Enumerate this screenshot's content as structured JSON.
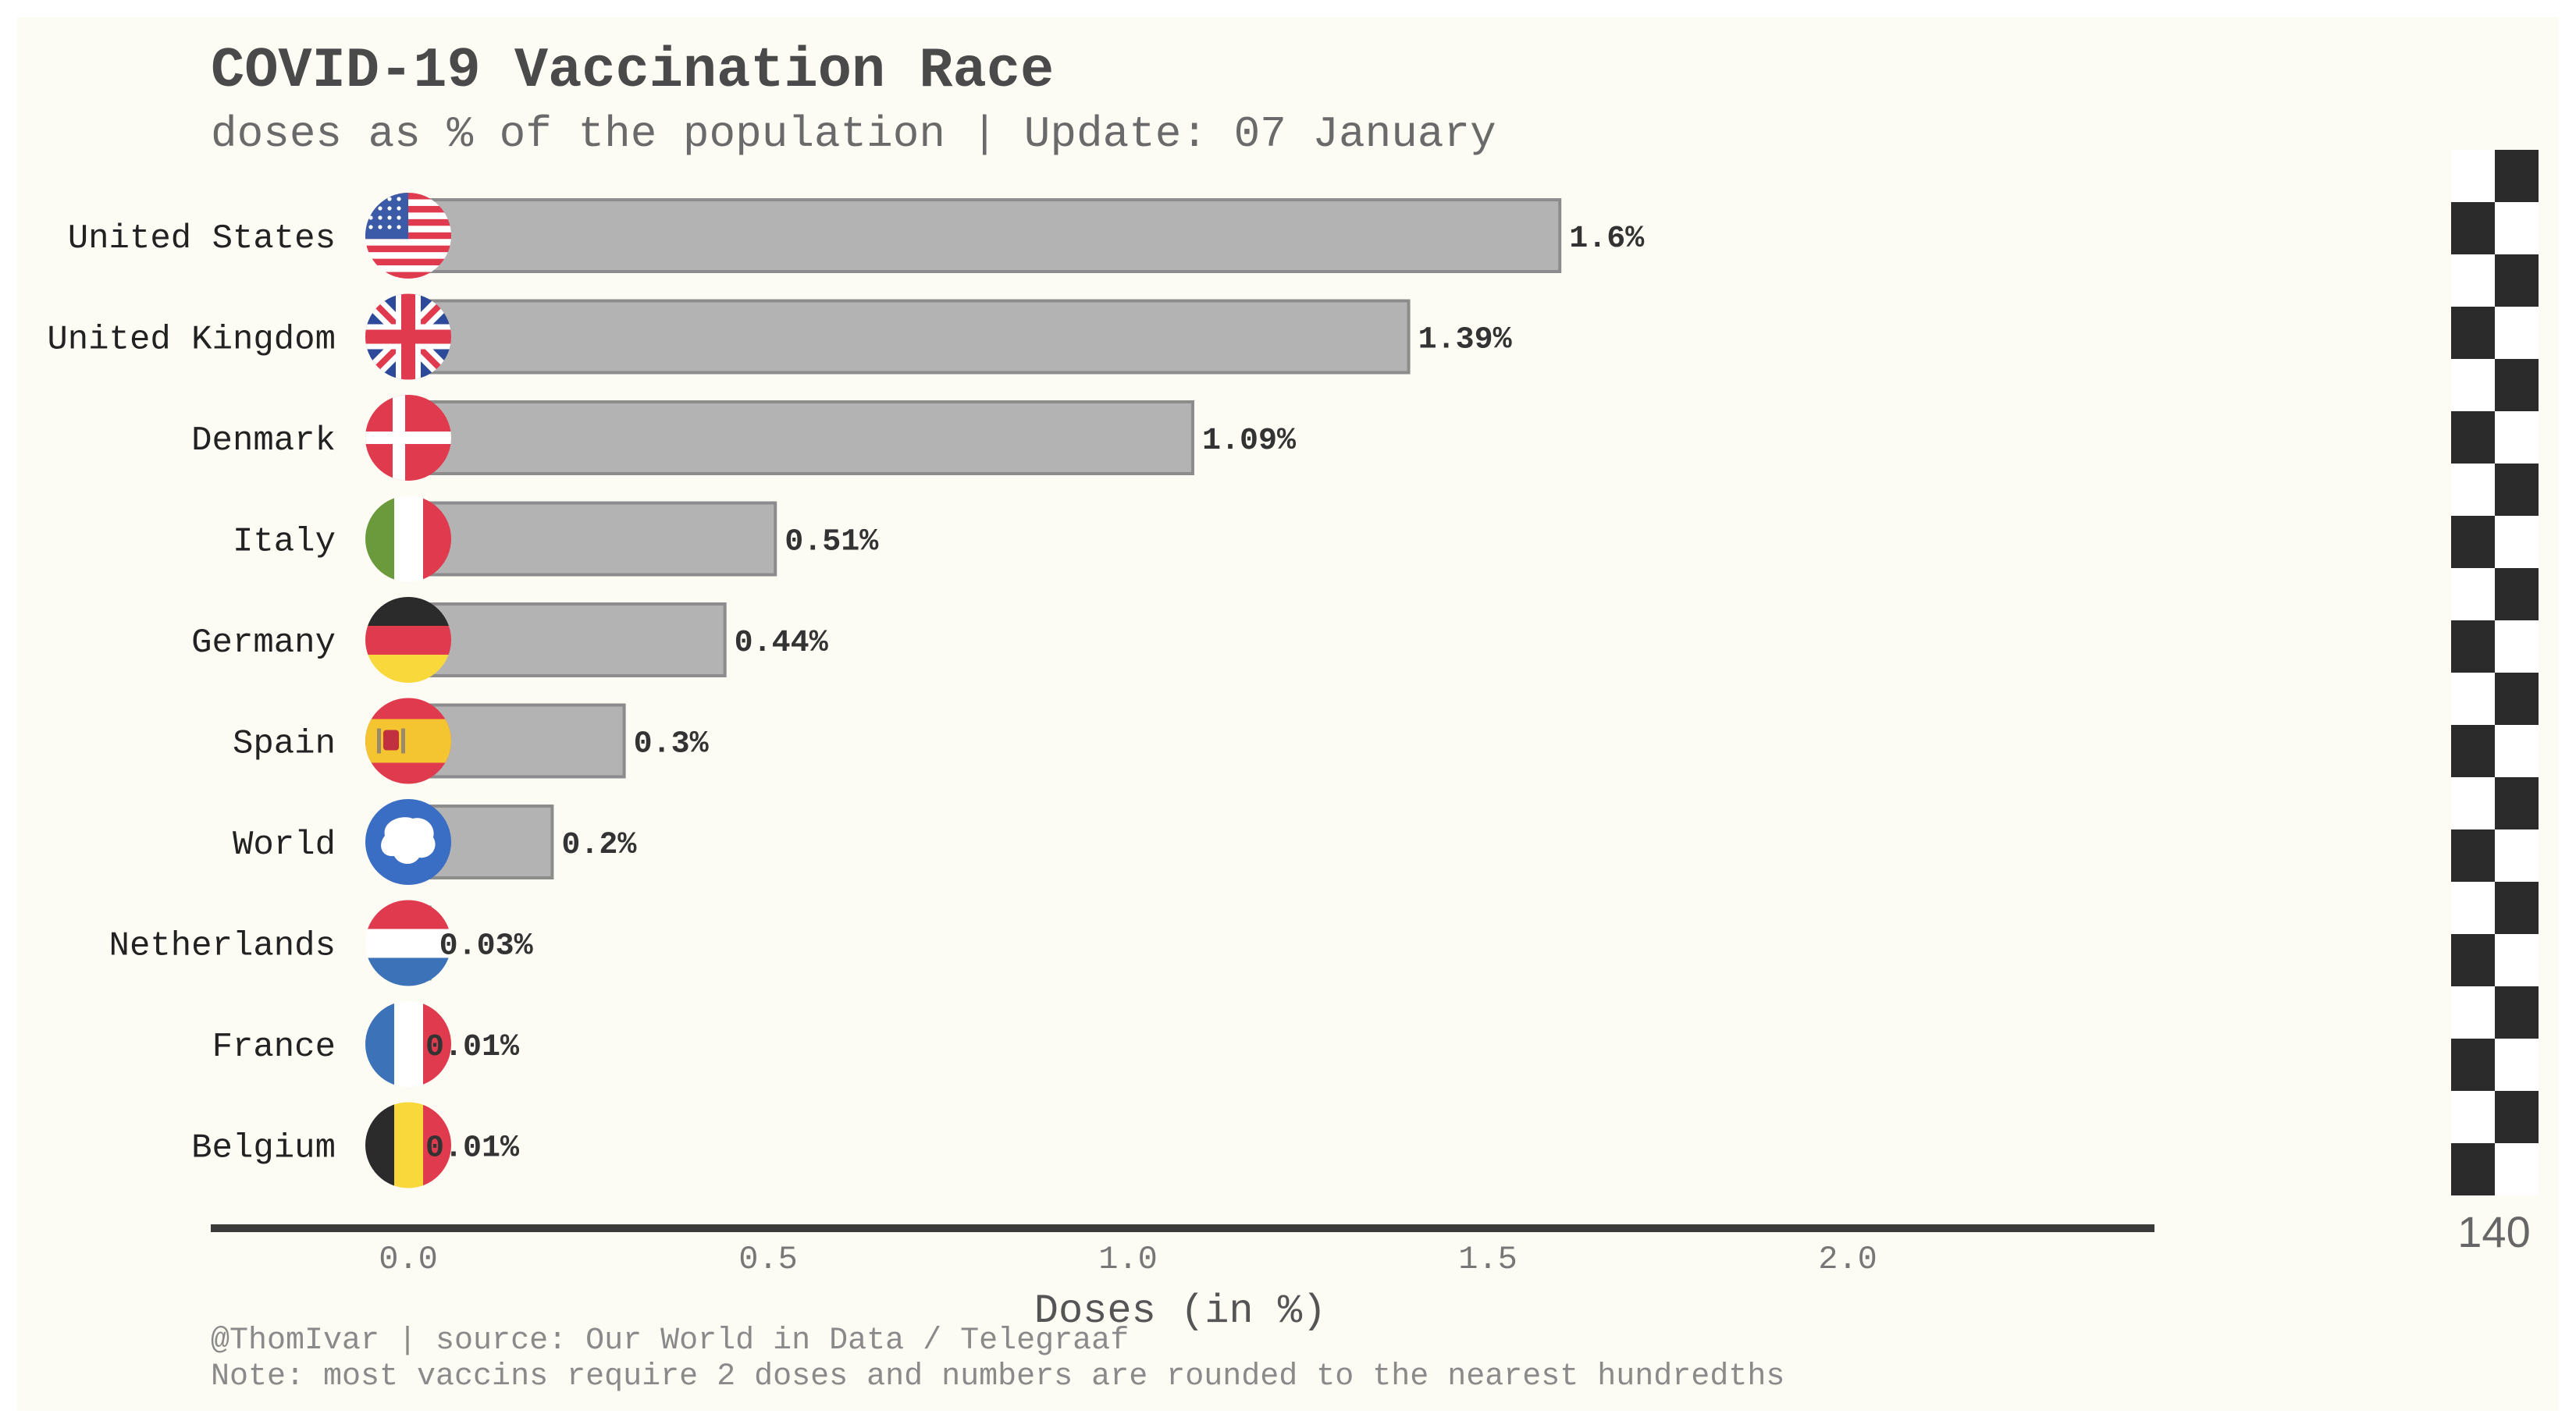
{
  "chart_data": {
    "type": "bar",
    "orientation": "horizontal",
    "title": "COVID-19 Vaccination Race",
    "subtitle": "doses as % of the population | Update: 07 January",
    "categories": [
      "United States",
      "United Kingdom",
      "Denmark",
      "Italy",
      "Germany",
      "Spain",
      "World",
      "Netherlands",
      "France",
      "Belgium"
    ],
    "values": [
      1.6,
      1.39,
      1.09,
      0.51,
      0.44,
      0.3,
      0.2,
      0.03,
      0.01,
      0.01
    ],
    "value_labels": [
      "1.6%",
      "1.39%",
      "1.09%",
      "0.51%",
      "0.44%",
      "0.3%",
      "0.2%",
      "0.03%",
      "0.01%",
      "0.01%"
    ],
    "flags": [
      "us-flag-icon",
      "uk-flag-icon",
      "denmark-flag-icon",
      "italy-flag-icon",
      "germany-flag-icon",
      "spain-flag-icon",
      "world-antarctica-flag-icon",
      "netherlands-flag-icon",
      "france-flag-icon",
      "belgium-flag-icon"
    ],
    "xlabel": "Doses (in %)",
    "xlim": [
      -0.27,
      2.43
    ],
    "xticks": [
      "0.0",
      "0.5",
      "1.0",
      "1.5",
      "2.0"
    ],
    "xtick_values": [
      0.0,
      0.5,
      1.0,
      1.5,
      2.0
    ],
    "grid": false,
    "finish_counter": "140",
    "bar_color": "#b3b3b3",
    "bar_edge_color": "#8c8c8c",
    "background_color": "#fdfcf4"
  },
  "footer": {
    "source": "@ThomIvar | source: Our World in Data / Telegraaf",
    "note": "Note: most vaccins require 2 doses and numbers are rounded to the nearest hundredths"
  }
}
